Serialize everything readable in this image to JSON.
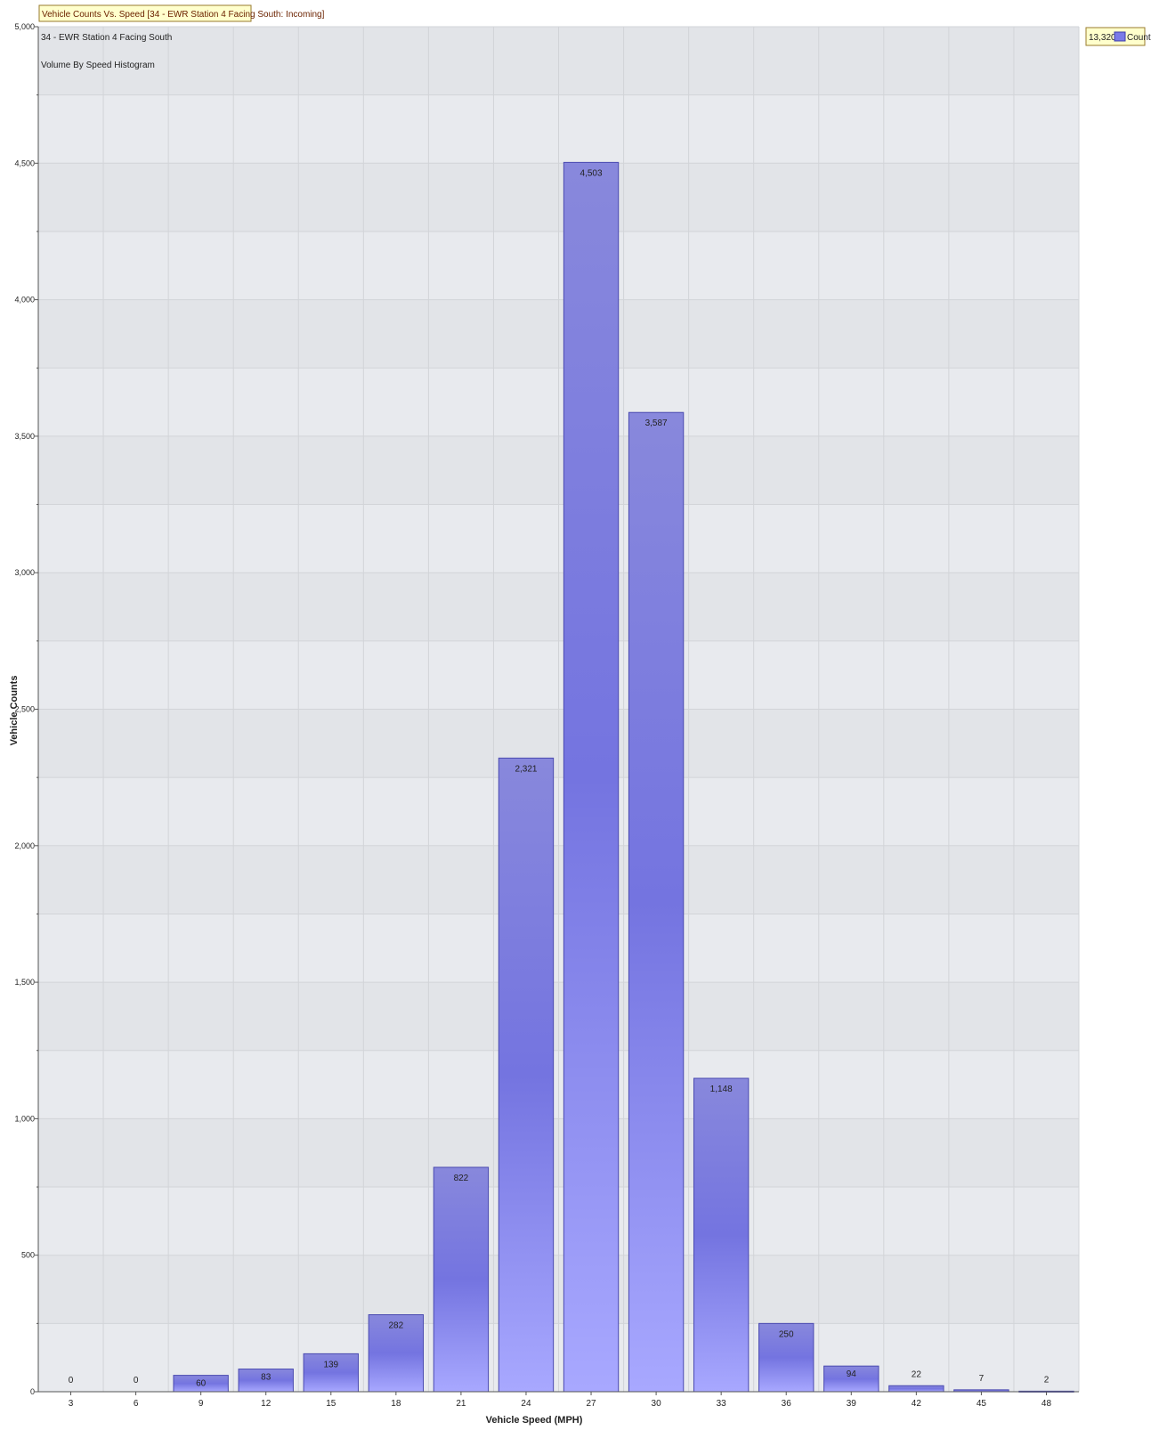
{
  "chart_data": {
    "type": "bar",
    "title": "Vehicle Counts Vs. Speed [34 - EWR Station 4 Facing South: Incoming]",
    "subtitles": [
      "34 - EWR Station 4 Facing South",
      "Volume By Speed Histogram"
    ],
    "xlabel": "Vehicle Speed (MPH)",
    "ylabel": "Vehicle Counts",
    "ylim": [
      0,
      5000
    ],
    "yticks": [
      "0",
      "500",
      "1,000",
      "1,500",
      "2,000",
      "2,500",
      "3,000",
      "3,500",
      "4,000",
      "4,500",
      "5,000"
    ],
    "yticks_values": [
      0,
      500,
      1000,
      1500,
      2000,
      2500,
      3000,
      3500,
      4000,
      4500,
      5000
    ],
    "categories": [
      "3",
      "6",
      "9",
      "12",
      "15",
      "18",
      "21",
      "24",
      "27",
      "30",
      "33",
      "36",
      "39",
      "42",
      "45",
      "48"
    ],
    "series": [
      {
        "name": "Counts",
        "values": [
          0,
          0,
          60,
          83,
          139,
          282,
          822,
          2321,
          4503,
          3587,
          1148,
          250,
          94,
          22,
          7,
          2
        ],
        "labels": [
          "0",
          "0",
          "60",
          "83",
          "139",
          "282",
          "822",
          "2,321",
          "4,503",
          "3,587",
          "1,148",
          "250",
          "94",
          "22",
          "7",
          "2"
        ]
      }
    ],
    "legend": {
      "position": "top-right",
      "total": "13,320",
      "entry": "Counts"
    },
    "grid": true,
    "colors": {
      "bar_light": "#a4a4ff",
      "bar_dark": "#6c6cde",
      "bar_border": "#4a4ab0",
      "plot_band_a": "#e8eaee",
      "plot_band_b": "#e2e4e8",
      "title_box_bg": "#ffffcc",
      "title_box_border": "#9a7b2e",
      "title_text": "#6b2200"
    }
  }
}
